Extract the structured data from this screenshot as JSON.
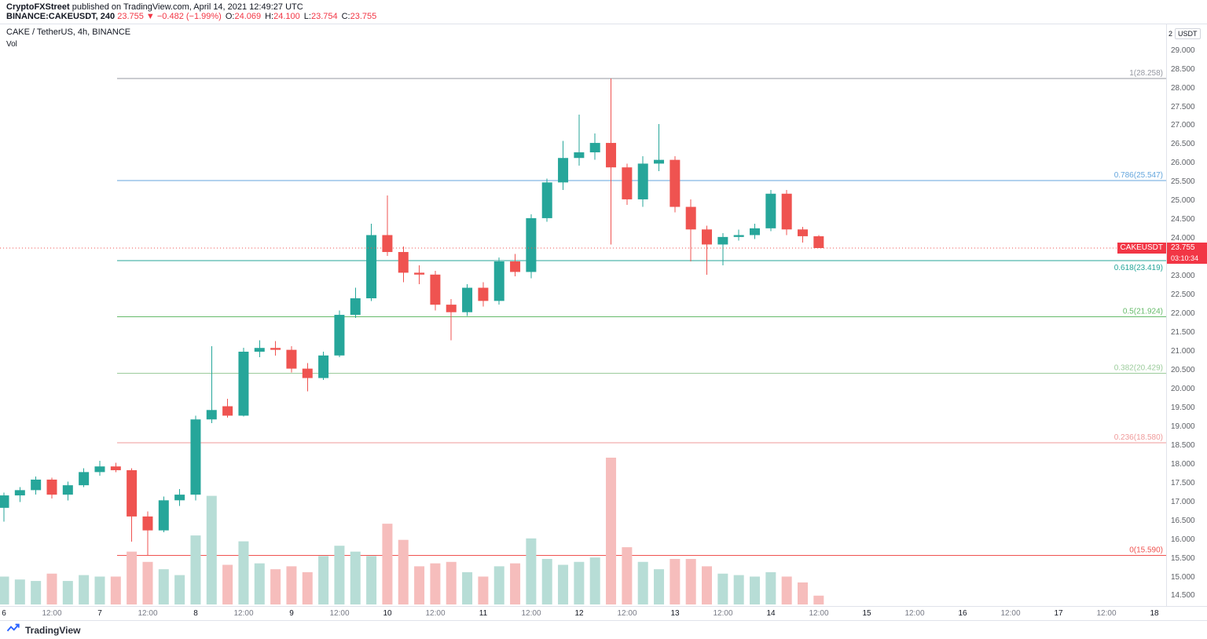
{
  "header": {
    "byline_author": "CryptoFXStreet",
    "byline_rest": " published on TradingView.com, April 14, 2021 12:49:27 UTC",
    "symbol": "BINANCE:CAKEUSDT, 240",
    "last_price": "23.755",
    "direction_arrow": "▼",
    "change": "−0.482 (−1.99%)",
    "ohlc": [
      {
        "label": "O:",
        "value": "24.069"
      },
      {
        "label": "H:",
        "value": "24.100"
      },
      {
        "label": "L:",
        "value": "23.754"
      },
      {
        "label": "C:",
        "value": "23.755"
      }
    ]
  },
  "legend": {
    "title": "CAKE / TetherUS, 4h, BINANCE",
    "volume_label": "Vol"
  },
  "axis_header": {
    "scale_number": "2",
    "currency": "USDT"
  },
  "price_label": {
    "symbol_tag": "CAKEUSDT",
    "price": "23.755",
    "countdown": "03:10:34"
  },
  "footer": {
    "brand": "TradingView"
  },
  "colors": {
    "candle_up": "#26a69a",
    "candle_down": "#ef5350",
    "volume_up": "#b7ddd6",
    "volume_down": "#f6bdbc",
    "price_line": "#ef5350",
    "badge_bg": "#f23645",
    "axis_text": "#5d6066",
    "border": "#e0e3eb"
  },
  "chart_data": {
    "type": "candlestick",
    "title": "CAKE / TetherUS, 4h, BINANCE",
    "symbol": "CAKE/USDT",
    "interval": "4h",
    "exchange": "BINANCE",
    "grid": false,
    "y_axis": {
      "min": 14.5,
      "max": 29.0,
      "step": 0.5,
      "ticks": [
        "29.000",
        "28.500",
        "28.000",
        "27.500",
        "27.000",
        "26.500",
        "26.000",
        "25.500",
        "25.000",
        "24.500",
        "24.000",
        "23.500",
        "23.000",
        "22.500",
        "22.000",
        "21.500",
        "21.000",
        "20.500",
        "20.000",
        "19.500",
        "19.000",
        "18.500",
        "18.000",
        "17.500",
        "17.000",
        "16.500",
        "16.000",
        "15.500",
        "15.000",
        "14.500"
      ]
    },
    "x_ticks": [
      "6",
      "12:00",
      "7",
      "12:00",
      "8",
      "12:00",
      "9",
      "12:00",
      "10",
      "12:00",
      "11",
      "12:00",
      "12",
      "12:00",
      "13",
      "12:00",
      "14",
      "12:00",
      "15",
      "12:00",
      "16",
      "12:00",
      "17",
      "12:00",
      "18"
    ],
    "fib_levels": [
      {
        "label": "1(28.258)",
        "value": 28.258,
        "color": "#9598a1",
        "label_below": false
      },
      {
        "label": "0.786(25.547)",
        "value": 25.547,
        "color": "#64a6dd",
        "label_below": false
      },
      {
        "label": "0.618(23.419)",
        "value": 23.419,
        "color": "#26a69a",
        "label_below": true
      },
      {
        "label": "0.5(21.924)",
        "value": 21.924,
        "color": "#66bb6a",
        "label_below": false
      },
      {
        "label": "0.382(20.429)",
        "value": 20.429,
        "color": "#9ccc9c",
        "label_below": false
      },
      {
        "label": "0.236(18.580)",
        "value": 18.58,
        "color": "#ef9a9a",
        "label_below": false
      },
      {
        "label": "0(15.590)",
        "value": 15.59,
        "color": "#ef5350",
        "label_below": false
      }
    ],
    "current_price": 23.755,
    "candles_format": [
      "open",
      "high",
      "low",
      "close"
    ],
    "candles": [
      [
        16.85,
        17.25,
        16.48,
        17.18
      ],
      [
        17.18,
        17.4,
        17.0,
        17.32
      ],
      [
        17.32,
        17.68,
        17.2,
        17.6
      ],
      [
        17.6,
        17.65,
        17.1,
        17.2
      ],
      [
        17.2,
        17.55,
        17.05,
        17.45
      ],
      [
        17.45,
        17.9,
        17.4,
        17.8
      ],
      [
        17.8,
        18.1,
        17.7,
        17.95
      ],
      [
        17.95,
        18.05,
        17.8,
        17.85
      ],
      [
        17.85,
        17.9,
        15.95,
        16.62
      ],
      [
        16.62,
        16.75,
        15.59,
        16.25
      ],
      [
        16.25,
        17.15,
        16.2,
        17.05
      ],
      [
        17.05,
        17.35,
        16.9,
        17.2
      ],
      [
        17.2,
        19.3,
        17.05,
        19.2
      ],
      [
        19.2,
        21.15,
        19.1,
        19.45
      ],
      [
        19.55,
        19.75,
        19.25,
        19.3
      ],
      [
        19.3,
        21.1,
        19.28,
        21.0
      ],
      [
        21.0,
        21.3,
        20.85,
        21.1
      ],
      [
        21.1,
        21.28,
        20.9,
        21.05
      ],
      [
        21.05,
        21.15,
        20.45,
        20.55
      ],
      [
        20.55,
        20.7,
        19.95,
        20.3
      ],
      [
        20.3,
        21.0,
        20.25,
        20.9
      ],
      [
        20.9,
        22.1,
        20.85,
        21.98
      ],
      [
        21.98,
        22.7,
        21.9,
        22.42
      ],
      [
        22.42,
        24.4,
        22.35,
        24.1
      ],
      [
        24.1,
        25.15,
        23.55,
        23.65
      ],
      [
        23.65,
        23.8,
        22.85,
        23.1
      ],
      [
        23.1,
        23.3,
        22.8,
        23.05
      ],
      [
        23.05,
        23.15,
        22.1,
        22.25
      ],
      [
        22.25,
        22.4,
        21.3,
        22.05
      ],
      [
        22.05,
        22.8,
        21.95,
        22.7
      ],
      [
        22.7,
        22.85,
        22.2,
        22.35
      ],
      [
        22.35,
        23.5,
        22.25,
        23.4
      ],
      [
        23.4,
        23.6,
        23.0,
        23.12
      ],
      [
        23.12,
        24.65,
        22.95,
        24.55
      ],
      [
        24.55,
        25.6,
        24.45,
        25.5
      ],
      [
        25.5,
        26.6,
        25.3,
        26.15
      ],
      [
        26.15,
        27.3,
        25.95,
        26.3
      ],
      [
        26.3,
        26.8,
        26.1,
        26.55
      ],
      [
        26.55,
        28.258,
        23.85,
        25.9
      ],
      [
        25.9,
        26.0,
        24.9,
        25.05
      ],
      [
        25.05,
        26.2,
        24.85,
        26.0
      ],
      [
        26.0,
        27.05,
        25.8,
        26.1
      ],
      [
        26.1,
        26.2,
        24.7,
        24.85
      ],
      [
        24.85,
        25.05,
        23.4,
        24.25
      ],
      [
        24.25,
        24.35,
        23.05,
        23.85
      ],
      [
        23.85,
        24.15,
        23.3,
        24.05
      ],
      [
        24.05,
        24.25,
        23.95,
        24.1
      ],
      [
        24.1,
        24.4,
        24.0,
        24.28
      ],
      [
        24.28,
        25.3,
        24.2,
        25.2
      ],
      [
        25.2,
        25.3,
        24.1,
        24.25
      ],
      [
        24.25,
        24.32,
        23.9,
        24.07
      ],
      [
        24.069,
        24.1,
        23.754,
        23.755
      ]
    ],
    "volume_pct": [
      19,
      17,
      16,
      21,
      16,
      20,
      19,
      19,
      36,
      29,
      24,
      20,
      47,
      74,
      27,
      43,
      28,
      24,
      26,
      22,
      33,
      40,
      36,
      33,
      55,
      44,
      26,
      28,
      29,
      22,
      19,
      26,
      28,
      45,
      31,
      27,
      29,
      32,
      100,
      39,
      29,
      24,
      31,
      31,
      26,
      21,
      20,
      19,
      22,
      19,
      15,
      6
    ]
  }
}
